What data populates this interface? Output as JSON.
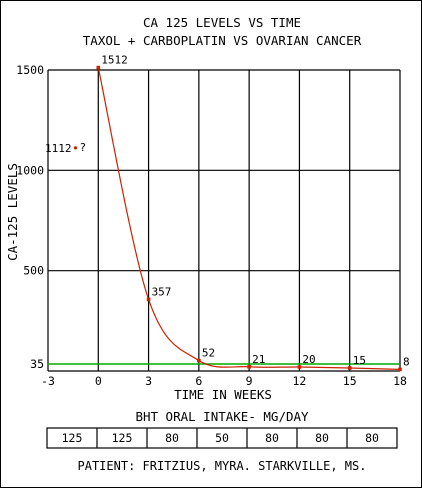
{
  "chart_data": {
    "type": "line",
    "title": "CA 125  LEVELS VS TIME",
    "subtitle": "TAXOL + CARBOPLATIN  VS  OVARIAN CANCER",
    "xlabel": "TIME IN WEEKS",
    "ylabel": "CA-125  LEVELS",
    "xlim": [
      -3,
      18
    ],
    "ylim": [
      0,
      1500
    ],
    "x_ticks": [
      "-3",
      "0",
      "3",
      "6",
      "9",
      "12",
      "15",
      "18"
    ],
    "y_ticks": [
      "35",
      "500",
      "1000",
      "1500"
    ],
    "grid": true,
    "series": [
      {
        "x": [
          0,
          3,
          6,
          9,
          12,
          15,
          18
        ],
        "values": [
          1512,
          357,
          52,
          21,
          20,
          15,
          8
        ],
        "labels": [
          "1512",
          "357",
          "52",
          "21",
          "20",
          "15",
          "8"
        ],
        "color": "#cc2200"
      }
    ],
    "reference_line": {
      "y": 35,
      "color": "#00aa00"
    },
    "annotation": {
      "x": -1,
      "y": 1112,
      "text": "1112",
      "mark": "?",
      "color": "#cc2200"
    },
    "table": {
      "title": "BHT ORAL INTAKE- MG/DAY",
      "values": [
        "125",
        "125",
        "80",
        "50",
        "80",
        "80",
        "80"
      ]
    },
    "footer": "PATIENT: FRITZIUS, MYRA.    STARKVILLE, MS."
  }
}
